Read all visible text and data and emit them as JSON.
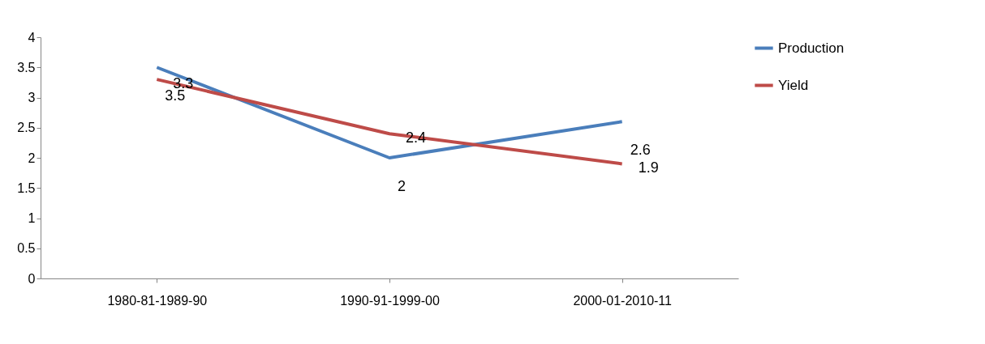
{
  "chart_data": {
    "type": "line",
    "categories": [
      "1980-81-1989-90",
      "1990-91-1999-00",
      "2000-01-2010-11"
    ],
    "series": [
      {
        "name": "Production",
        "color": "#4a7ebb",
        "values": [
          3.5,
          2,
          2.6
        ]
      },
      {
        "name": "Yield",
        "color": "#be4b48",
        "values": [
          3.3,
          2.4,
          1.9
        ]
      }
    ],
    "ylim": [
      0,
      4
    ],
    "yticks": [
      0,
      0.5,
      1,
      1.5,
      2,
      2.5,
      3,
      3.5,
      4
    ],
    "grid": false,
    "legend": "right",
    "data_labels": true,
    "marker": "none",
    "line_style": "solid"
  }
}
